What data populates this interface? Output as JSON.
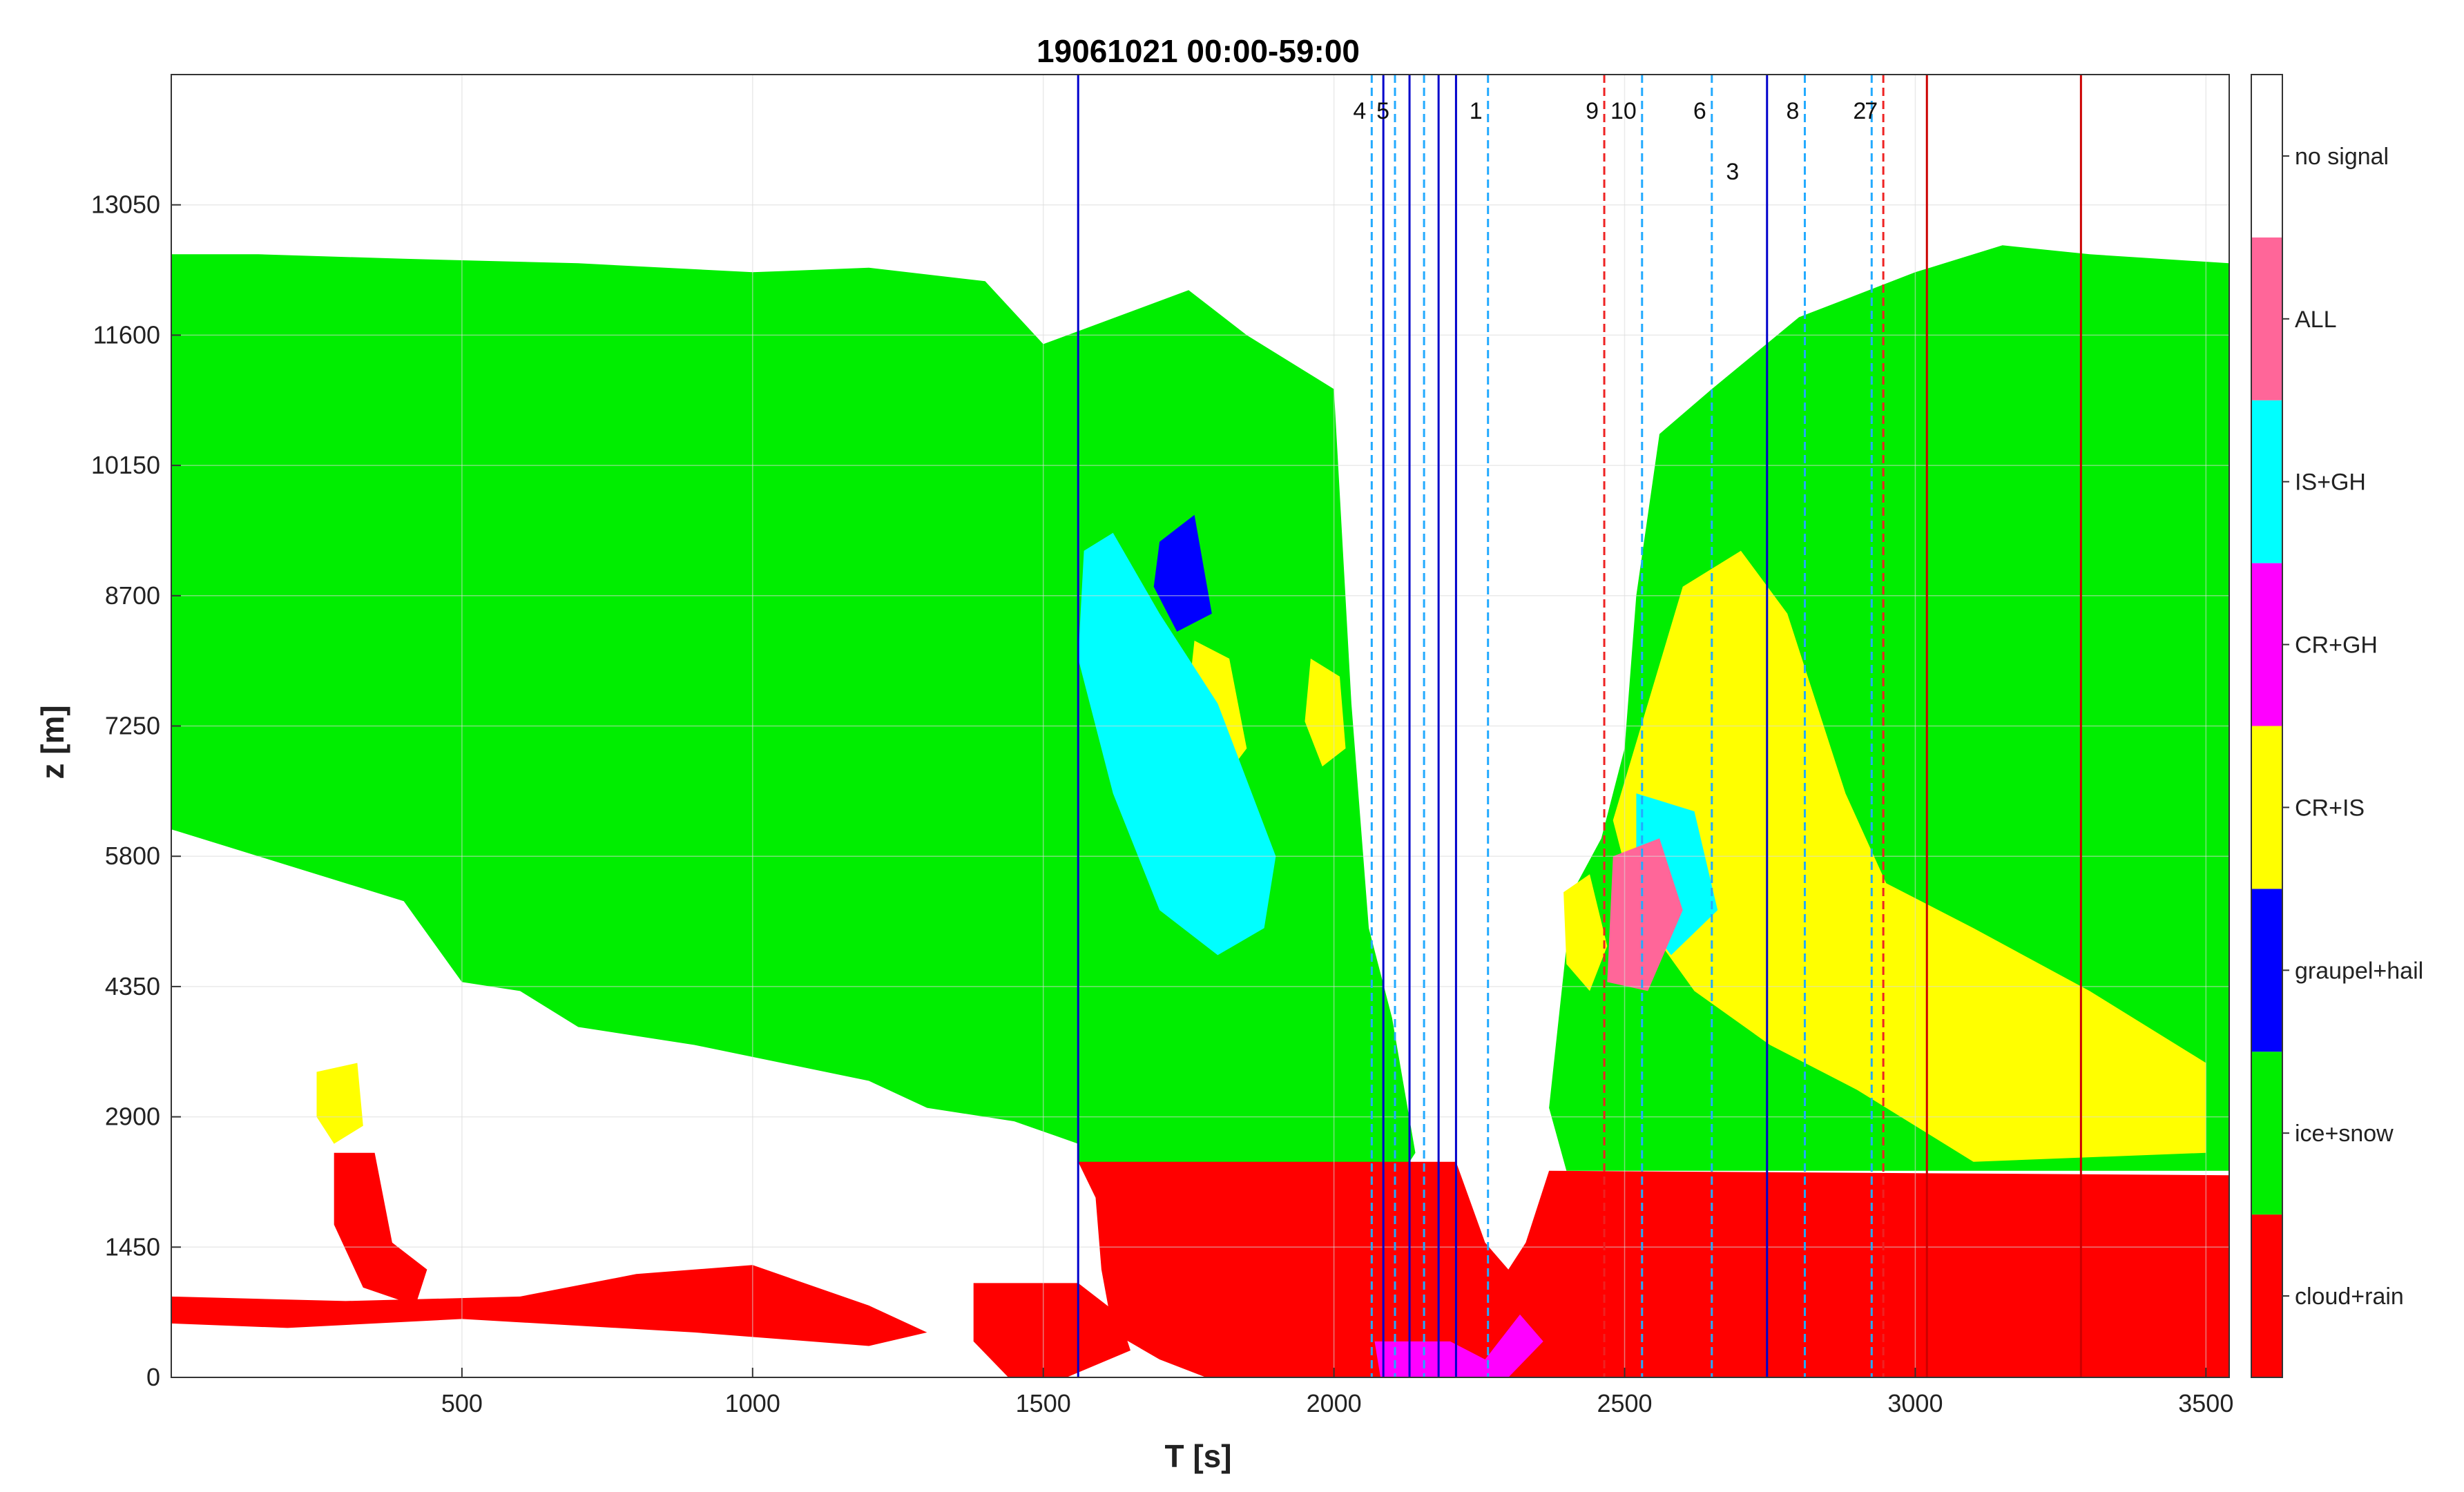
{
  "chart_data": {
    "type": "heatmap",
    "title": "19061021 00:00-59:00",
    "xlabel": "T [s]",
    "ylabel": "z [m]",
    "xlim": [
      0,
      3540
    ],
    "ylim": [
      0,
      14500
    ],
    "xticks": [
      500,
      1000,
      1500,
      2000,
      2500,
      3000,
      3500
    ],
    "yticks": [
      0,
      1450,
      2900,
      4350,
      5800,
      7250,
      8700,
      10150,
      11600,
      13050
    ],
    "grid": true,
    "classes": [
      {
        "name": "cloud+rain",
        "color": "#ff0000"
      },
      {
        "name": "ice+snow",
        "color": "#00ee00"
      },
      {
        "name": "graupel+hail",
        "color": "#0000ff"
      },
      {
        "name": "CR+IS",
        "color": "#ffff00"
      },
      {
        "name": "CR+GH",
        "color": "#ff00ff"
      },
      {
        "name": "IS+GH",
        "color": "#00ffff"
      },
      {
        "name": "ALL",
        "color": "#ff6699"
      },
      {
        "name": "no signal",
        "color": "#ffffff"
      }
    ],
    "regions": {
      "ice_layer": [
        [
          0,
          12500
        ],
        [
          150,
          12500
        ],
        [
          400,
          12450
        ],
        [
          700,
          12400
        ],
        [
          1000,
          12300
        ],
        [
          1200,
          12350
        ],
        [
          1400,
          12200
        ],
        [
          1500,
          11500
        ],
        [
          1750,
          12100
        ],
        [
          1850,
          11600
        ],
        [
          2000,
          11000
        ],
        [
          2030,
          7500
        ],
        [
          2060,
          5000
        ],
        [
          2100,
          4000
        ],
        [
          2140,
          2500
        ],
        [
          2100,
          2100
        ],
        [
          1560,
          2400
        ],
        [
          1560,
          2600
        ],
        [
          1450,
          2850
        ],
        [
          1300,
          3000
        ],
        [
          1200,
          3300
        ],
        [
          1050,
          3500
        ],
        [
          900,
          3700
        ],
        [
          700,
          3900
        ],
        [
          600,
          4300
        ],
        [
          500,
          4400
        ],
        [
          400,
          5300
        ],
        [
          200,
          5700
        ],
        [
          0,
          6100
        ]
      ],
      "ice_right": [
        [
          2400,
          2300
        ],
        [
          2370,
          3000
        ],
        [
          2410,
          5400
        ],
        [
          2460,
          6000
        ],
        [
          2500,
          7000
        ],
        [
          2520,
          8700
        ],
        [
          2560,
          10500
        ],
        [
          2650,
          11000
        ],
        [
          2800,
          11800
        ],
        [
          3000,
          12300
        ],
        [
          3150,
          12600
        ],
        [
          3300,
          12500
        ],
        [
          3540,
          12400
        ],
        [
          3540,
          2300
        ]
      ],
      "rain_main": [
        [
          1560,
          2400
        ],
        [
          2210,
          2400
        ],
        [
          2260,
          1500
        ],
        [
          2300,
          1200
        ],
        [
          2330,
          1500
        ],
        [
          2370,
          2300
        ],
        [
          3540,
          2250
        ],
        [
          3540,
          0
        ],
        [
          1780,
          0
        ],
        [
          1700,
          200
        ],
        [
          1620,
          500
        ],
        [
          1600,
          1200
        ],
        [
          1590,
          2000
        ]
      ],
      "rain_low_left": [
        [
          0,
          900
        ],
        [
          300,
          850
        ],
        [
          600,
          900
        ],
        [
          800,
          1150
        ],
        [
          1000,
          1250
        ],
        [
          1200,
          800
        ],
        [
          1300,
          500
        ],
        [
          1200,
          350
        ],
        [
          900,
          500
        ],
        [
          500,
          650
        ],
        [
          200,
          550
        ],
        [
          0,
          600
        ]
      ],
      "rain_small": [
        [
          280,
          2500
        ],
        [
          350,
          2500
        ],
        [
          380,
          1500
        ],
        [
          440,
          1200
        ],
        [
          420,
          800
        ],
        [
          330,
          1000
        ],
        [
          280,
          1700
        ]
      ],
      "rain_blob": [
        [
          1380,
          1050
        ],
        [
          1560,
          1050
        ],
        [
          1630,
          700
        ],
        [
          1650,
          300
        ],
        [
          1540,
          0
        ],
        [
          1440,
          0
        ],
        [
          1380,
          400
        ]
      ],
      "yellow_small": [
        [
          250,
          3400
        ],
        [
          320,
          3500
        ],
        [
          330,
          2800
        ],
        [
          280,
          2600
        ],
        [
          250,
          2900
        ]
      ],
      "yellow_right": [
        [
          2600,
          8800
        ],
        [
          2700,
          9200
        ],
        [
          2780,
          8500
        ],
        [
          2880,
          6500
        ],
        [
          2950,
          5500
        ],
        [
          3100,
          5000
        ],
        [
          3300,
          4300
        ],
        [
          3500,
          3500
        ],
        [
          3500,
          2500
        ],
        [
          3100,
          2400
        ],
        [
          2900,
          3200
        ],
        [
          2750,
          3700
        ],
        [
          2620,
          4300
        ],
        [
          2520,
          5200
        ],
        [
          2480,
          6200
        ]
      ],
      "yellow_mid": [
        [
          1760,
          8200
        ],
        [
          1820,
          8000
        ],
        [
          1850,
          7000
        ],
        [
          1780,
          6400
        ],
        [
          1740,
          7000
        ]
      ],
      "yellow_mid2": [
        [
          1960,
          8000
        ],
        [
          2010,
          7800
        ],
        [
          2020,
          7000
        ],
        [
          1980,
          6800
        ],
        [
          1950,
          7300
        ]
      ],
      "yellow_left_spot": [
        [
          2395,
          5400
        ],
        [
          2440,
          5600
        ],
        [
          2470,
          4800
        ],
        [
          2440,
          4300
        ],
        [
          2400,
          4600
        ]
      ],
      "cyan_left": [
        [
          1570,
          9200
        ],
        [
          1620,
          9400
        ],
        [
          1700,
          8500
        ],
        [
          1800,
          7500
        ],
        [
          1900,
          5800
        ],
        [
          1880,
          5000
        ],
        [
          1800,
          4700
        ],
        [
          1700,
          5200
        ],
        [
          1620,
          6500
        ],
        [
          1560,
          8000
        ]
      ],
      "cyan_right": [
        [
          2520,
          6500
        ],
        [
          2620,
          6300
        ],
        [
          2660,
          5200
        ],
        [
          2580,
          4700
        ],
        [
          2520,
          5200
        ]
      ],
      "pink_right": [
        [
          2480,
          5800
        ],
        [
          2560,
          6000
        ],
        [
          2600,
          5200
        ],
        [
          2540,
          4300
        ],
        [
          2470,
          4400
        ]
      ],
      "magenta_base": [
        [
          2070,
          400
        ],
        [
          2200,
          400
        ],
        [
          2260,
          200
        ],
        [
          2320,
          700
        ],
        [
          2360,
          400
        ],
        [
          2300,
          0
        ],
        [
          2080,
          0
        ]
      ],
      "blue_cores": [
        [
          1700,
          9300
        ],
        [
          1760,
          9600
        ],
        [
          1790,
          8500
        ],
        [
          1730,
          8300
        ],
        [
          1690,
          8800
        ]
      ]
    },
    "vlines": [
      {
        "x": 1560,
        "color": "#0000cc",
        "style": "solid"
      },
      {
        "x": 2065,
        "color": "#22aaff",
        "style": "dashed",
        "label": "4"
      },
      {
        "x": 2085,
        "color": "#0000cc",
        "style": "solid"
      },
      {
        "x": 2105,
        "color": "#22aaff",
        "style": "dashed",
        "label": "5"
      },
      {
        "x": 2130,
        "color": "#0000cc",
        "style": "solid"
      },
      {
        "x": 2155,
        "color": "#22aaff",
        "style": "dashed"
      },
      {
        "x": 2180,
        "color": "#0000cc",
        "style": "solid"
      },
      {
        "x": 2210,
        "color": "#0000cc",
        "style": "solid"
      },
      {
        "x": 2265,
        "color": "#22aaff",
        "style": "dashed",
        "label": "1"
      },
      {
        "x": 2465,
        "color": "#ee2222",
        "style": "dashed",
        "label": "9"
      },
      {
        "x": 2530,
        "color": "#22aaff",
        "style": "dashed",
        "label": "10"
      },
      {
        "x": 2650,
        "color": "#22aaff",
        "style": "dashed",
        "label": "6",
        "label2": "3"
      },
      {
        "x": 2745,
        "color": "#0000cc",
        "style": "solid"
      },
      {
        "x": 2810,
        "color": "#22aaff",
        "style": "dashed",
        "label": "8"
      },
      {
        "x": 2925,
        "color": "#22aaff",
        "style": "dashed",
        "label": "2"
      },
      {
        "x": 2945,
        "color": "#ee2222",
        "style": "dashed",
        "label": "7"
      },
      {
        "x": 3020,
        "color": "#cc0000",
        "style": "solid"
      },
      {
        "x": 3285,
        "color": "#cc0000",
        "style": "solid"
      }
    ]
  }
}
